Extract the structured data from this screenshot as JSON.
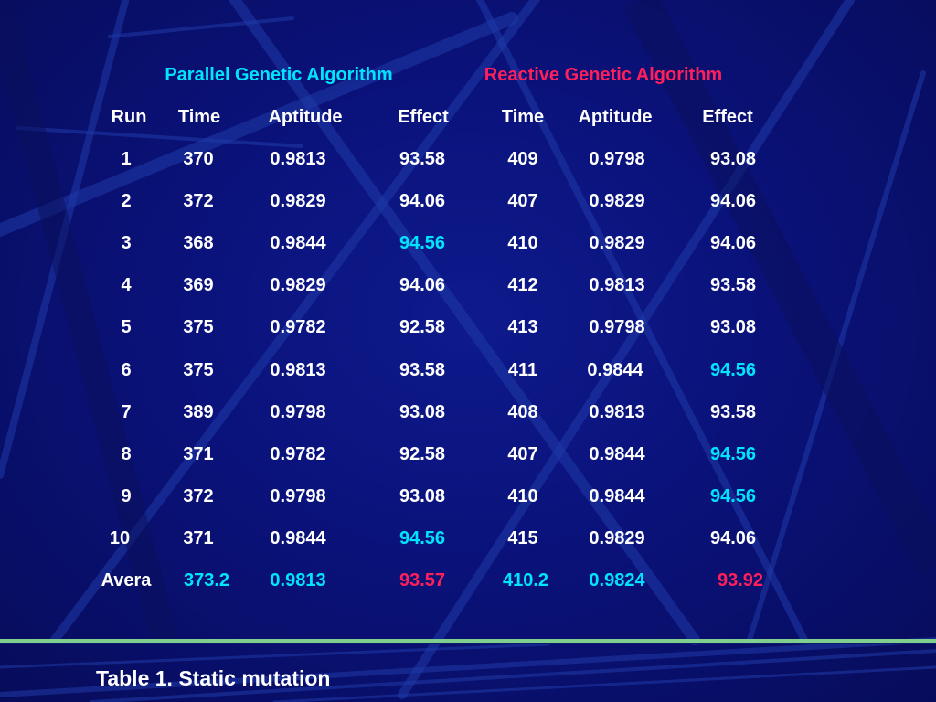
{
  "headers": {
    "group_parallel": "Parallel Genetic Algorithm",
    "group_reactive": "Reactive Genetic Algorithm",
    "columns": [
      "Run",
      "Time",
      "Aptitude",
      "Effect",
      "Time",
      "Aptitude",
      "Effect"
    ]
  },
  "rows": [
    [
      "1",
      "370",
      "0.9813",
      "93.58",
      "409",
      "0.9798",
      "93.08"
    ],
    [
      "2",
      "372",
      "0.9829",
      "94.06",
      "407",
      "0.9829",
      "94.06"
    ],
    [
      "3",
      "368",
      "0.9844",
      "94.56",
      "410",
      "0.9829",
      "94.06"
    ],
    [
      "4",
      "369",
      "0.9829",
      "94.06",
      "412",
      "0.9813",
      "93.58"
    ],
    [
      "5",
      "375",
      "0.9782",
      "92.58",
      "413",
      "0.9798",
      "93.08"
    ],
    [
      "6",
      "375",
      "0.9813",
      "93.58",
      "411",
      "0.9844",
      "94.56"
    ],
    [
      "7",
      "389",
      "0.9798",
      "93.08",
      "408",
      "0.9813",
      "93.58"
    ],
    [
      "8",
      "371",
      "0.9782",
      "92.58",
      "407",
      "0.9844",
      "94.56"
    ],
    [
      "9",
      "372",
      "0.9798",
      "93.08",
      "410",
      "0.9844",
      "94.56"
    ],
    [
      "10",
      "371",
      "0.9844",
      "94.56",
      "415",
      "0.9829",
      "94.06"
    ]
  ],
  "average": [
    "Avera",
    "373.2",
    "0.9813",
    "93.57",
    "410.2",
    "0.9824",
    "93.92"
  ],
  "caption": "Table 1. Static mutation",
  "colors": {
    "background": "#0a127a",
    "text": "#ffffff",
    "highlight": "#00e5ff",
    "accent_red": "#ff1f5a",
    "divider": "#7fcf8f"
  }
}
